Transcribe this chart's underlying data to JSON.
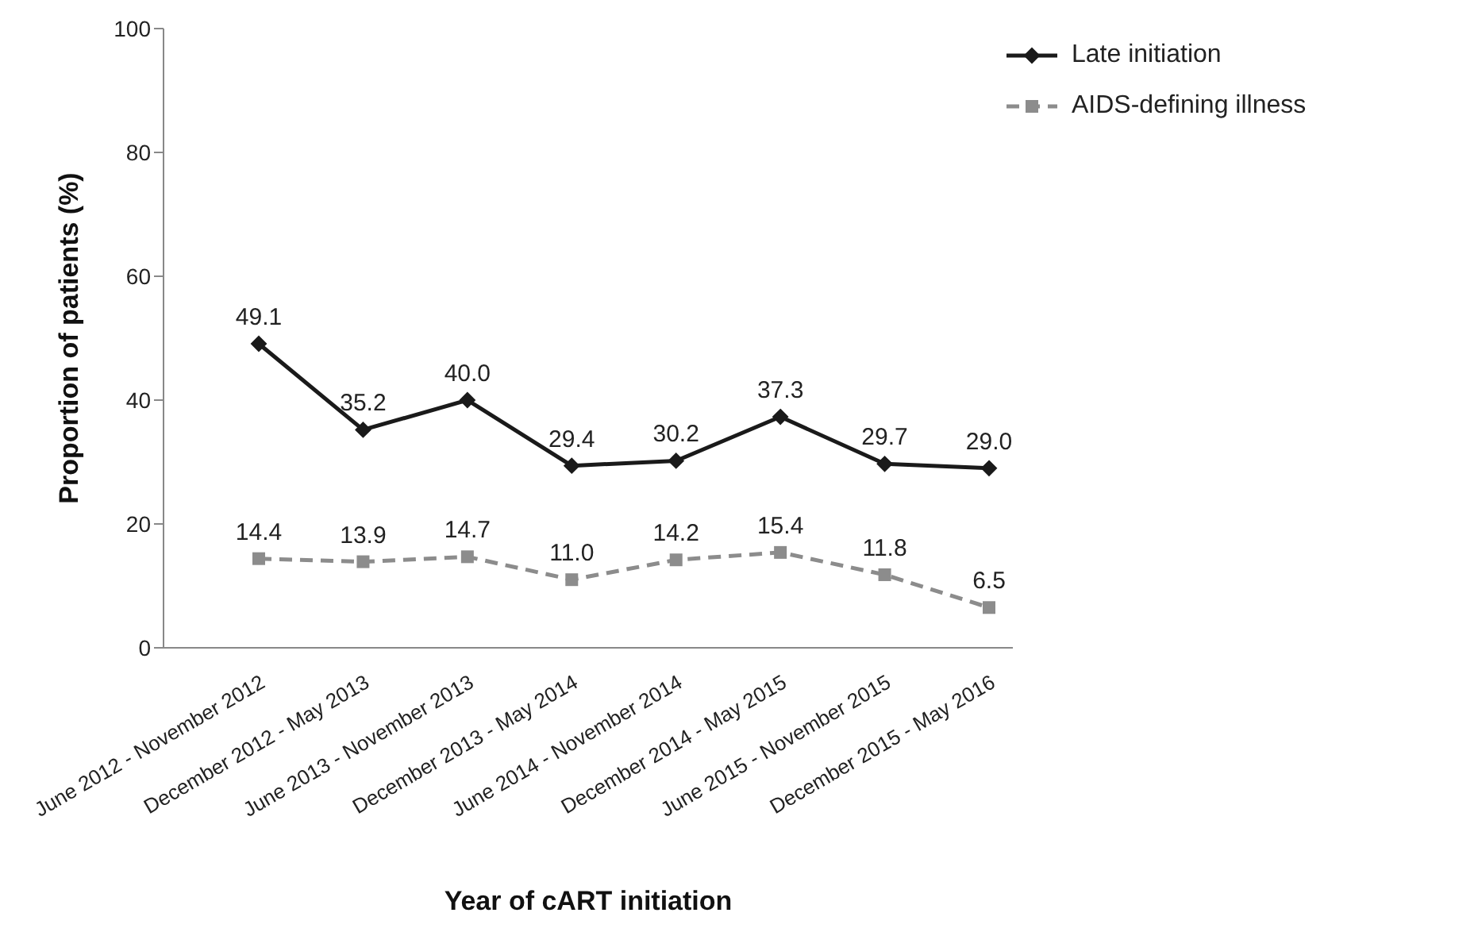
{
  "chart_data": {
    "type": "line",
    "xlabel": "Year of cART initiation",
    "ylabel": "Proportion of patients (%)",
    "categories": [
      "June 2012 - November 2012",
      "December 2012 - May 2013",
      "June 2013 - November 2013",
      "December 2013 - May 2014",
      "June 2014 - November 2014",
      "December 2014 - May 2015",
      "June 2015 - November 2015",
      "December 2015 - May 2016"
    ],
    "series": [
      {
        "name": "Late initiation",
        "color": "#1a1a1a",
        "marker": "diamond",
        "line_style": "solid",
        "values": [
          49.1,
          35.2,
          40.0,
          29.4,
          30.2,
          37.3,
          29.7,
          29.0
        ],
        "value_labels": [
          "49.1",
          "35.2",
          "40.0",
          "29.4",
          "30.2",
          "37.3",
          "29.7",
          "29.0"
        ]
      },
      {
        "name": "AIDS-defining illness",
        "color": "#8c8c8c",
        "marker": "square",
        "line_style": "dashed",
        "values": [
          14.4,
          13.9,
          14.7,
          11.0,
          14.2,
          15.4,
          11.8,
          6.5
        ],
        "value_labels": [
          "14.4",
          "13.9",
          "14.7",
          "11.0",
          "14.2",
          "15.4",
          "11.8",
          "6.5"
        ]
      }
    ],
    "ylim": [
      0,
      100
    ],
    "yticks": [
      0,
      20,
      40,
      60,
      80,
      100
    ],
    "grid": false,
    "legend": "top right"
  }
}
